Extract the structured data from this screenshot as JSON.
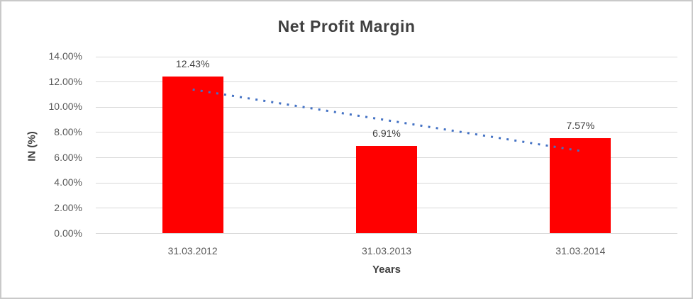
{
  "chart_data": {
    "type": "bar",
    "title": "Net Profit Margin",
    "xlabel": "Years",
    "ylabel": "IN (%)",
    "categories": [
      "31.03.2012",
      "31.03.2013",
      "31.03.2014"
    ],
    "values": [
      12.43,
      6.91,
      7.57
    ],
    "data_labels": [
      "12.43%",
      "6.91%",
      "7.57%"
    ],
    "y_ticks": [
      "0.00%",
      "2.00%",
      "4.00%",
      "6.00%",
      "8.00%",
      "10.00%",
      "12.00%",
      "14.00%"
    ],
    "ylim": [
      0,
      14
    ],
    "grid": true,
    "legend": "none",
    "bar_color": "#ff0000",
    "trendline": {
      "style": "dotted",
      "color": "#4472c4",
      "fit": "linear"
    }
  },
  "colors": {
    "background": "#ffffff",
    "border": "#c9c9c9",
    "gridline": "#d9d9d9",
    "title_text": "#404040",
    "tick_text": "#595959",
    "label_text": "#404040"
  }
}
